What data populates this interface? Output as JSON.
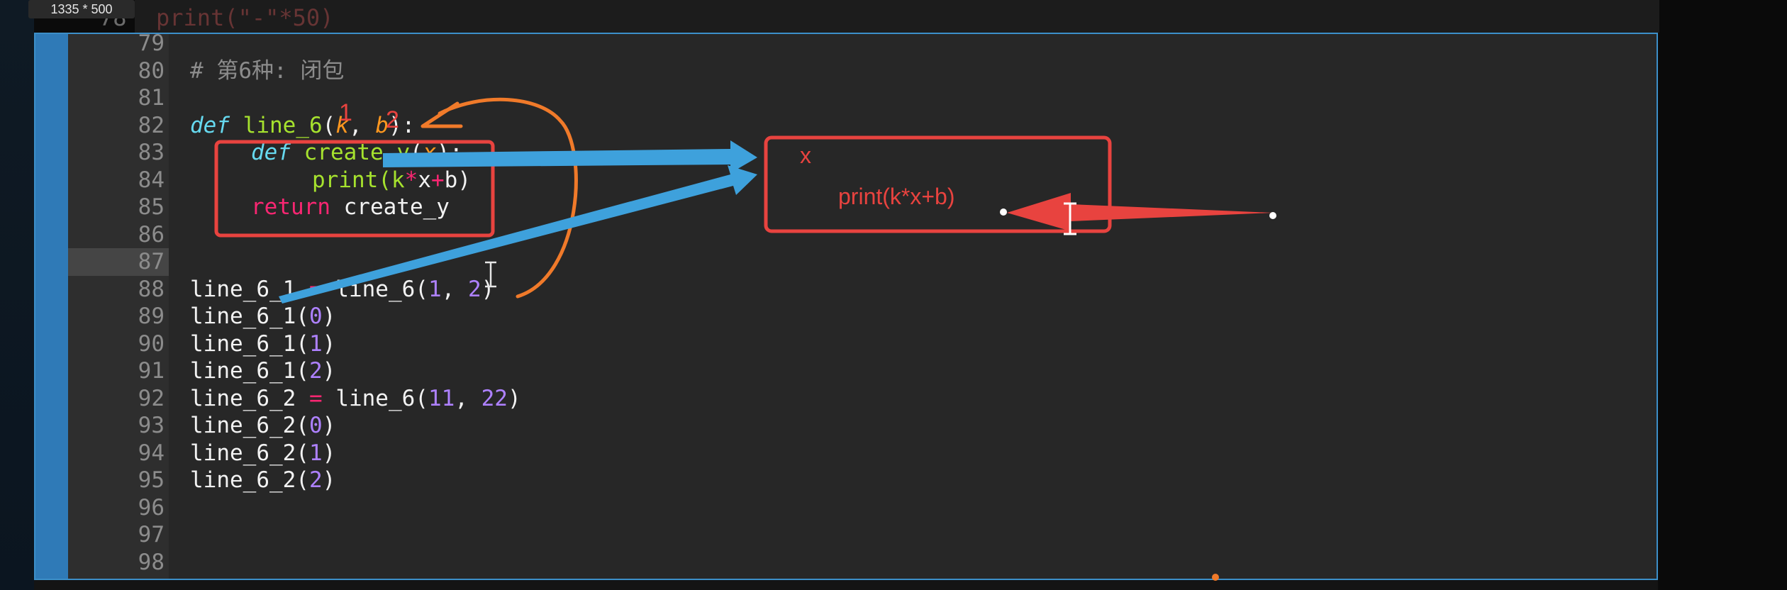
{
  "badge": {
    "size_label": "1335 * 500"
  },
  "top_partial": {
    "line_number": "78",
    "code": "print(\"-\"*50)"
  },
  "editor": {
    "lines": [
      {
        "n": "79"
      },
      {
        "n": "80",
        "comment": "# 第6种: 闭包"
      },
      {
        "n": "81"
      },
      {
        "n": "82",
        "def_kw": "def",
        "name": "line_6",
        "open": "(",
        "p1": "k",
        "sep": ", ",
        "p2": "b",
        "close": "):"
      },
      {
        "n": "83",
        "def_kw": "def",
        "name": "create_y",
        "open": "(",
        "p1": "x",
        "close": "):"
      },
      {
        "n": "84",
        "call": "print(k",
        "op1": "*",
        "mid": "x",
        "op2": "+",
        "end": "b)"
      },
      {
        "n": "85",
        "ret_kw": "return",
        "rest": " create_y"
      },
      {
        "n": "86"
      },
      {
        "n": "87"
      },
      {
        "n": "88",
        "lhs": "line_6_1 ",
        "eq": "=",
        "mid": " line_6(",
        "a1": "1",
        "sep": ", ",
        "a2": "2",
        "close": ")"
      },
      {
        "n": "89",
        "name": "line_6_1(",
        "arg": "0",
        "close": ")"
      },
      {
        "n": "90",
        "name": "line_6_1(",
        "arg": "1",
        "close": ")"
      },
      {
        "n": "91",
        "name": "line_6_1(",
        "arg": "2",
        "close": ")"
      },
      {
        "n": "92",
        "lhs": "line_6_2 ",
        "eq": "=",
        "mid": " line_6(",
        "a1": "11",
        "sep": ", ",
        "a2": "22",
        "close": ")"
      },
      {
        "n": "93",
        "name": "line_6_2(",
        "arg": "0",
        "close": ")"
      },
      {
        "n": "94",
        "name": "line_6_2(",
        "arg": "1",
        "close": ")"
      },
      {
        "n": "95",
        "name": "line_6_2(",
        "arg": "2",
        "close": ")"
      },
      {
        "n": "96"
      },
      {
        "n": "97"
      },
      {
        "n": "98"
      }
    ]
  },
  "annotations": {
    "mark_k": "1",
    "mark_b": "2",
    "box_x": "x",
    "box_print": "print(k*x+b)"
  },
  "colors": {
    "annotation_red": "#e8433f",
    "annotation_blue": "#3ea1dc",
    "annotation_orange": "#f07a2a",
    "editor_border": "#3c8fc9"
  }
}
